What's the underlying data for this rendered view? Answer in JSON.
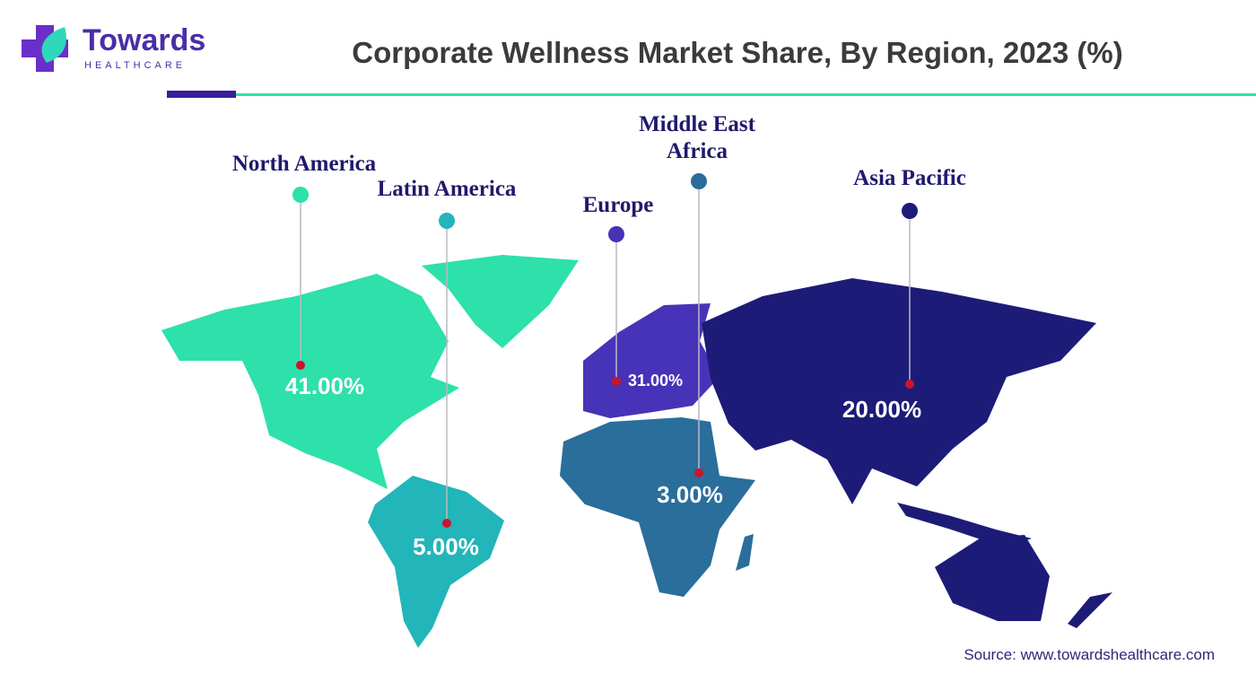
{
  "brand": {
    "name": "Towards",
    "tagline": "HEALTHCARE"
  },
  "chart_data": {
    "type": "map",
    "title": "Corporate Wellness Market Share, By Region, 2023 (%)",
    "categories": [
      "North America",
      "Latin America",
      "Europe",
      "Middle East Africa",
      "Asia Pacific"
    ],
    "values": [
      41,
      5,
      31,
      3,
      20
    ],
    "value_labels": [
      "41.00%",
      "5.00%",
      "31.00%",
      "3.00%",
      "20.00%"
    ],
    "colors": [
      "#2ee0aa",
      "#22b5b9",
      "#4733b7",
      "#2a6e9b",
      "#1d1b78"
    ],
    "source": "Source: www.towardshealthcare.com"
  }
}
